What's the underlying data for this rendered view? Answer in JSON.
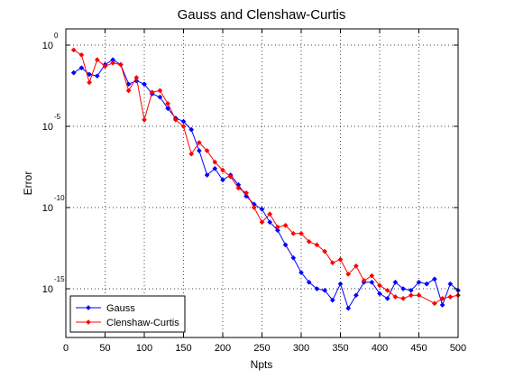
{
  "chart_data": {
    "type": "line",
    "title": "Gauss and Clenshaw-Curtis",
    "xlabel": "Npts",
    "ylabel": "Error",
    "xlim": [
      0,
      500
    ],
    "ylim": [
      -18,
      1
    ],
    "yscale": "log",
    "grid": true,
    "legend_position": "bottom-left",
    "x_ticks": [
      "0",
      "50",
      "100",
      "150",
      "200",
      "250",
      "300",
      "350",
      "400",
      "450",
      "500"
    ],
    "y_ticks": [
      {
        "value": 0,
        "base": "10",
        "exp": "0"
      },
      {
        "value": -5,
        "base": "10",
        "exp": "-5"
      },
      {
        "value": -10,
        "base": "10",
        "exp": "-10"
      },
      {
        "value": -15,
        "base": "10",
        "exp": "-15"
      }
    ],
    "series": [
      {
        "name": "Gauss",
        "color": "#0000ff",
        "x": [
          10,
          20,
          30,
          40,
          50,
          60,
          70,
          80,
          90,
          100,
          110,
          120,
          130,
          140,
          150,
          160,
          170,
          180,
          190,
          200,
          210,
          220,
          230,
          240,
          250,
          260,
          270,
          280,
          290,
          300,
          310,
          320,
          330,
          340,
          350,
          360,
          370,
          380,
          390,
          400,
          410,
          420,
          430,
          440,
          450,
          460,
          470,
          480,
          490,
          500
        ],
        "log10_y": [
          -1.7,
          -1.4,
          -1.8,
          -1.9,
          -1.2,
          -0.9,
          -1.2,
          -2.4,
          -2.2,
          -2.4,
          -3.0,
          -3.2,
          -3.9,
          -4.5,
          -4.7,
          -5.2,
          -6.5,
          -8.0,
          -7.6,
          -8.3,
          -8.0,
          -8.6,
          -9.3,
          -9.8,
          -10.1,
          -10.9,
          -11.4,
          -12.3,
          -13.1,
          -14.0,
          -14.6,
          -15.0,
          -15.1,
          -15.7,
          -14.7,
          -16.2,
          -15.4,
          -14.6,
          -14.6,
          -15.3,
          -15.6,
          -14.6,
          -15.0,
          -15.1,
          -14.6,
          -14.7,
          -14.4,
          -16.0,
          -14.7,
          -15.1
        ]
      },
      {
        "name": "Clenshaw-Curtis",
        "color": "#ff0000",
        "x": [
          10,
          20,
          30,
          40,
          50,
          60,
          70,
          80,
          90,
          100,
          110,
          120,
          130,
          140,
          150,
          160,
          170,
          180,
          190,
          200,
          210,
          220,
          230,
          240,
          250,
          260,
          270,
          280,
          290,
          300,
          310,
          320,
          330,
          340,
          350,
          360,
          370,
          380,
          390,
          400,
          410,
          420,
          430,
          440,
          450,
          470,
          480,
          490,
          500
        ],
        "log10_y": [
          -0.3,
          -0.6,
          -2.3,
          -0.9,
          -1.3,
          -1.1,
          -1.2,
          -2.8,
          -2.0,
          -4.6,
          -2.9,
          -2.8,
          -3.6,
          -4.6,
          -5.0,
          -6.7,
          -6.0,
          -6.5,
          -7.2,
          -7.7,
          -8.1,
          -8.8,
          -9.1,
          -10.0,
          -10.9,
          -10.4,
          -11.2,
          -11.1,
          -11.6,
          -11.6,
          -12.1,
          -12.3,
          -12.7,
          -13.4,
          -13.2,
          -14.1,
          -13.6,
          -14.5,
          -14.2,
          -14.8,
          -15.1,
          -15.5,
          -15.6,
          -15.4,
          -15.4,
          -15.9,
          -15.6,
          -15.5,
          -15.4
        ]
      }
    ]
  }
}
